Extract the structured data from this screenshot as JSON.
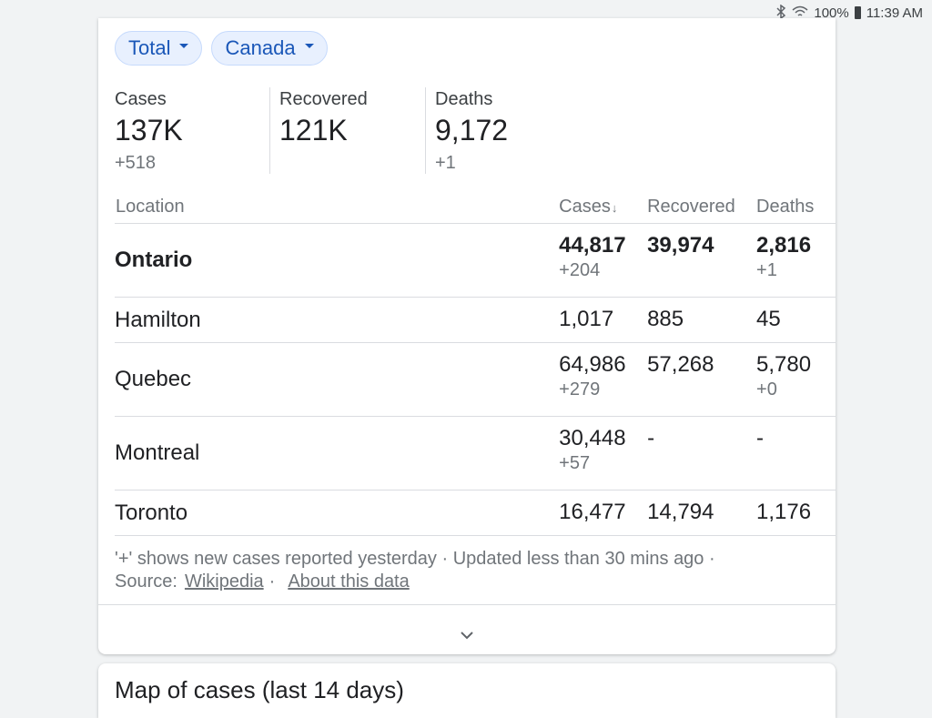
{
  "status_bar": {
    "battery": "100%",
    "time": "11:39 AM",
    "icons": [
      "bluetooth-icon",
      "wifi-icon",
      "battery-icon"
    ]
  },
  "filters": {
    "type": "Total",
    "region": "Canada"
  },
  "summary": {
    "cases": {
      "label": "Cases",
      "value": "137K",
      "delta": "+518"
    },
    "recovered": {
      "label": "Recovered",
      "value": "121K"
    },
    "deaths": {
      "label": "Deaths",
      "value": "9,172",
      "delta": "+1"
    }
  },
  "table": {
    "headers": {
      "location": "Location",
      "cases": "Cases",
      "recovered": "Recovered",
      "deaths": "Deaths"
    },
    "sort_indicator": "↓",
    "rows": [
      {
        "location": "Ontario",
        "cases": "44,817",
        "cases_delta": "+204",
        "recovered": "39,974",
        "deaths": "2,816",
        "deaths_delta": "+1"
      },
      {
        "location": "Hamilton",
        "cases": "1,017",
        "recovered": "885",
        "deaths": "45"
      },
      {
        "location": "Quebec",
        "cases": "64,986",
        "cases_delta": "+279",
        "recovered": "57,268",
        "deaths": "5,780",
        "deaths_delta": "+0"
      },
      {
        "location": "Montreal",
        "cases": "30,448",
        "cases_delta": "+57",
        "recovered": "-",
        "deaths": "-"
      },
      {
        "location": "Toronto",
        "cases": "16,477",
        "recovered": "14,794",
        "deaths": "1,176"
      }
    ]
  },
  "footer": {
    "note": "'+' shows new cases reported yesterday · Updated less than 30 mins ago ·",
    "source_label": "Source:",
    "source_link": "Wikipedia",
    "separator": "·",
    "about_link": "About this data"
  },
  "next_card": {
    "title": "Map of cases (last 14 days)"
  },
  "colors": {
    "chip_bg": "#e8f0fe",
    "chip_text": "#1a57b8",
    "muted": "#70757a",
    "divider": "#dadce0"
  }
}
